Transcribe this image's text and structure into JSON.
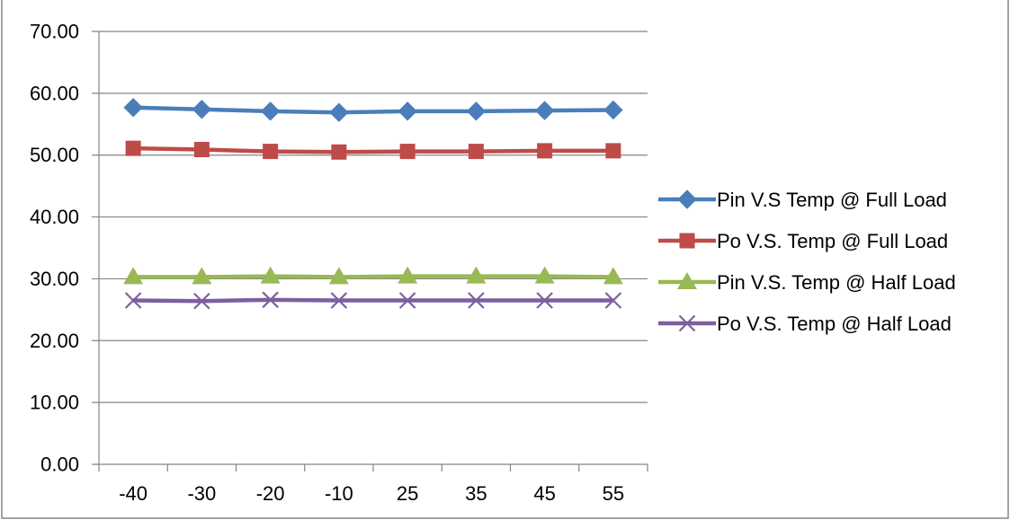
{
  "chart_data": {
    "type": "line",
    "title": "",
    "xlabel": "",
    "ylabel": "",
    "categories": [
      "-40",
      "-30",
      "-20",
      "-10",
      "25",
      "35",
      "45",
      "55"
    ],
    "ylim": [
      0,
      70
    ],
    "y_ticks": [
      "0.00",
      "10.00",
      "20.00",
      "30.00",
      "40.00",
      "50.00",
      "60.00",
      "70.00"
    ],
    "grid": true,
    "legend_position": "right",
    "series": [
      {
        "name": "Pin V.S Temp @ Full Load",
        "color": "#4a7ebb",
        "marker": "diamond",
        "values": [
          57.7,
          57.4,
          57.1,
          56.9,
          57.1,
          57.1,
          57.2,
          57.3
        ]
      },
      {
        "name": "Po V.S. Temp @ Full Load",
        "color": "#be4b48",
        "marker": "square",
        "values": [
          51.1,
          50.9,
          50.6,
          50.5,
          50.6,
          50.6,
          50.7,
          50.7
        ]
      },
      {
        "name": "Pin V.S. Temp @ Half Load",
        "color": "#98b954",
        "marker": "triangle",
        "values": [
          30.3,
          30.3,
          30.4,
          30.3,
          30.4,
          30.4,
          30.4,
          30.3
        ]
      },
      {
        "name": "Po V.S. Temp @ Half Load",
        "color": "#7d5fa0",
        "marker": "x",
        "values": [
          26.5,
          26.4,
          26.6,
          26.5,
          26.5,
          26.5,
          26.5,
          26.5
        ]
      }
    ]
  }
}
